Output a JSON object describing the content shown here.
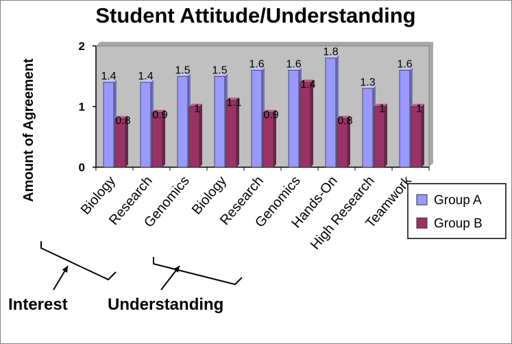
{
  "chart_data": {
    "type": "bar",
    "title": "Student Attitude/Understanding",
    "ylabel": "Amount of Agreement",
    "xlabel": "",
    "ylim": [
      0,
      2
    ],
    "yticks": [
      0,
      1,
      2
    ],
    "grid": false,
    "legend_position": "right",
    "categories": [
      "Biology",
      "Research",
      "Genomics",
      "Biology",
      "Research",
      "Genomics",
      "Hands-On",
      "High Research",
      "Teamwork"
    ],
    "series": [
      {
        "name": "Group A",
        "color": "#9999ff",
        "values": [
          1.4,
          1.4,
          1.5,
          1.5,
          1.6,
          1.6,
          1.8,
          1.3,
          1.6
        ]
      },
      {
        "name": "Group B",
        "color": "#993366",
        "values": [
          0.8,
          0.9,
          1,
          1.1,
          0.9,
          1.4,
          0.8,
          1,
          1
        ]
      }
    ],
    "data_labels": [
      [
        "1.4",
        "1.4",
        "1.5",
        "1.5",
        "1.6",
        "1.6",
        "1.8",
        "1.3",
        "1.6"
      ],
      [
        "0.8",
        "0.9",
        "1",
        "1.1",
        "0.9",
        "1.4",
        "0.8",
        "1",
        "1"
      ]
    ],
    "category_groups": [
      {
        "label": "Interest",
        "categories": [
          "Biology",
          "Research",
          "Genomics"
        ]
      },
      {
        "label": "Understanding",
        "categories": [
          "Biology",
          "Research",
          "Genomics"
        ]
      }
    ],
    "plot_background": "#c0c0c0"
  }
}
